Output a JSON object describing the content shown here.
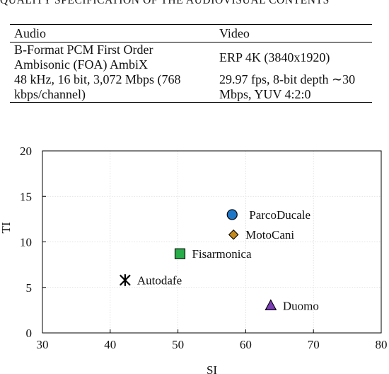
{
  "caption": "QUALITY SPECIFICATION OF THE AUDIOVISUAL CONTENTS",
  "table": {
    "headers": [
      "Audio",
      "Video"
    ],
    "rows": [
      [
        "B-Format PCM First Order Ambisonic (FOA) AmbiX",
        "ERP 4K (3840x1920)"
      ],
      [
        "48 kHz, 16 bit, 3,072 Mbps (768 kbps/channel)",
        "29.97 fps, 8-bit depth ∼30 Mbps, YUV 4:2:0"
      ]
    ]
  },
  "chart_data": {
    "type": "scatter",
    "xlabel": "SI",
    "ylabel": "TI",
    "xlim": [
      30,
      80
    ],
    "ylim": [
      0,
      20
    ],
    "xticks": [
      30,
      40,
      50,
      60,
      70,
      80
    ],
    "yticks": [
      0,
      5,
      10,
      15,
      20
    ],
    "grid": true,
    "points": [
      {
        "label": "ParcoDucale",
        "x": 58,
        "y": 13,
        "marker": "circle",
        "color": "#1f77c8"
      },
      {
        "label": "MotoCani",
        "x": 58.2,
        "y": 10.8,
        "marker": "diamond",
        "color": "#c58a1c"
      },
      {
        "label": "Fisarmonica",
        "x": 50.3,
        "y": 8.7,
        "marker": "square",
        "color": "#27ae4a"
      },
      {
        "label": "Autodafe",
        "x": 42.2,
        "y": 5.8,
        "marker": "asterisk",
        "color": "#000000"
      },
      {
        "label": "Duomo",
        "x": 63.7,
        "y": 3.0,
        "marker": "triangle",
        "color": "#7a3db5"
      }
    ]
  }
}
